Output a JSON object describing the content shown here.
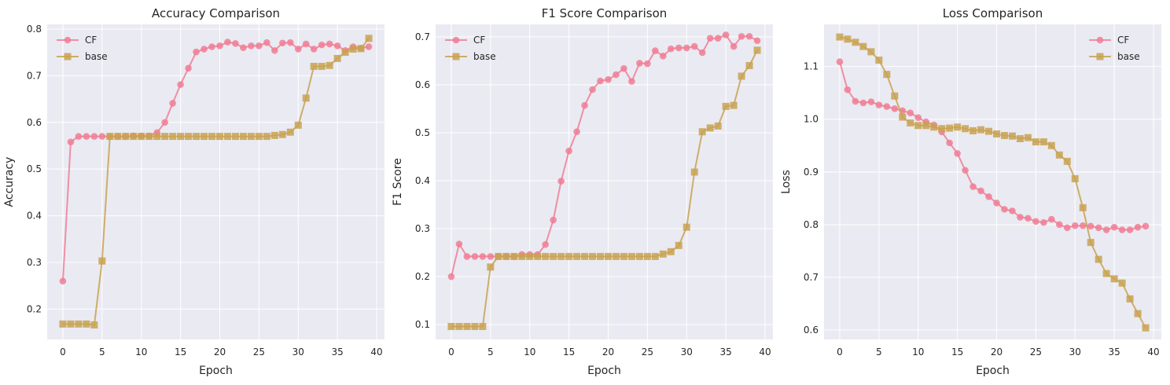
{
  "style": {
    "axes_bg": "#eaeaf2",
    "grid_color": "#ffffff",
    "cf_color": "#f07e95",
    "base_color": "#c8a251",
    "text_color": "#262626"
  },
  "chart_data": [
    {
      "type": "line",
      "title": "Accuracy Comparison",
      "xlabel": "Epoch",
      "ylabel": "Accuracy",
      "xlim": [
        -2,
        41
      ],
      "ylim": [
        0.135,
        0.81
      ],
      "xticks": [
        0,
        5,
        10,
        15,
        20,
        25,
        30,
        35,
        40
      ],
      "yticks": [
        0.2,
        0.3,
        0.4,
        0.5,
        0.6,
        0.7,
        0.8
      ],
      "ytick_labels": [
        "0.2",
        "0.3",
        "0.4",
        "0.5",
        "0.6",
        "0.7",
        "0.8"
      ],
      "grid": true,
      "legend_position": "upper-left",
      "series": [
        {
          "name": "CF",
          "marker": "circle",
          "color": "#f07e95",
          "x": [
            0,
            1,
            2,
            3,
            4,
            5,
            6,
            7,
            8,
            9,
            10,
            11,
            12,
            13,
            14,
            15,
            16,
            17,
            18,
            19,
            20,
            21,
            22,
            23,
            24,
            25,
            26,
            27,
            28,
            29,
            30,
            31,
            32,
            33,
            34,
            35,
            36,
            37,
            38,
            39
          ],
          "y": [
            0.26,
            0.558,
            0.57,
            0.57,
            0.57,
            0.57,
            0.57,
            0.57,
            0.57,
            0.571,
            0.571,
            0.571,
            0.578,
            0.6,
            0.641,
            0.681,
            0.716,
            0.751,
            0.757,
            0.762,
            0.764,
            0.772,
            0.769,
            0.76,
            0.764,
            0.764,
            0.771,
            0.754,
            0.77,
            0.771,
            0.757,
            0.768,
            0.757,
            0.766,
            0.768,
            0.764,
            0.754,
            0.762,
            0.759,
            0.762
          ]
        },
        {
          "name": "base",
          "marker": "square",
          "color": "#c8a251",
          "x": [
            0,
            1,
            2,
            3,
            4,
            5,
            6,
            7,
            8,
            9,
            10,
            11,
            12,
            13,
            14,
            15,
            16,
            17,
            18,
            19,
            20,
            21,
            22,
            23,
            24,
            25,
            26,
            27,
            28,
            29,
            30,
            31,
            32,
            33,
            34,
            35,
            36,
            37,
            38,
            39
          ],
          "y": [
            0.168,
            0.168,
            0.168,
            0.168,
            0.166,
            0.303,
            0.57,
            0.57,
            0.57,
            0.57,
            0.57,
            0.57,
            0.57,
            0.57,
            0.57,
            0.57,
            0.57,
            0.57,
            0.57,
            0.57,
            0.57,
            0.57,
            0.57,
            0.57,
            0.57,
            0.57,
            0.57,
            0.572,
            0.574,
            0.579,
            0.594,
            0.652,
            0.72,
            0.72,
            0.722,
            0.737,
            0.75,
            0.757,
            0.758,
            0.78
          ]
        }
      ]
    },
    {
      "type": "line",
      "title": "F1 Score Comparison",
      "xlabel": "Epoch",
      "ylabel": "F1 Score",
      "xlim": [
        -2,
        41
      ],
      "ylim": [
        0.069,
        0.726
      ],
      "xticks": [
        0,
        5,
        10,
        15,
        20,
        25,
        30,
        35,
        40
      ],
      "yticks": [
        0.1,
        0.2,
        0.3,
        0.4,
        0.5,
        0.6,
        0.7
      ],
      "ytick_labels": [
        "0.1",
        "0.2",
        "0.3",
        "0.4",
        "0.5",
        "0.6",
        "0.7"
      ],
      "grid": true,
      "legend_position": "upper-left",
      "series": [
        {
          "name": "CF",
          "marker": "circle",
          "color": "#f07e95",
          "x": [
            0,
            1,
            2,
            3,
            4,
            5,
            6,
            7,
            8,
            9,
            10,
            11,
            12,
            13,
            14,
            15,
            16,
            17,
            18,
            19,
            20,
            21,
            22,
            23,
            24,
            25,
            26,
            27,
            28,
            29,
            30,
            31,
            32,
            33,
            34,
            35,
            36,
            37,
            38,
            39
          ],
          "y": [
            0.2,
            0.268,
            0.242,
            0.242,
            0.242,
            0.242,
            0.242,
            0.242,
            0.242,
            0.246,
            0.246,
            0.246,
            0.267,
            0.318,
            0.399,
            0.462,
            0.502,
            0.557,
            0.59,
            0.608,
            0.611,
            0.621,
            0.634,
            0.607,
            0.645,
            0.644,
            0.671,
            0.66,
            0.675,
            0.677,
            0.677,
            0.68,
            0.667,
            0.697,
            0.697,
            0.704,
            0.68,
            0.701,
            0.701,
            0.692
          ]
        },
        {
          "name": "base",
          "marker": "square",
          "color": "#c8a251",
          "x": [
            0,
            1,
            2,
            3,
            4,
            5,
            6,
            7,
            8,
            9,
            10,
            11,
            12,
            13,
            14,
            15,
            16,
            17,
            18,
            19,
            20,
            21,
            22,
            23,
            24,
            25,
            26,
            27,
            28,
            29,
            30,
            31,
            32,
            33,
            34,
            35,
            36,
            37,
            38,
            39
          ],
          "y": [
            0.096,
            0.096,
            0.096,
            0.096,
            0.096,
            0.22,
            0.242,
            0.242,
            0.242,
            0.242,
            0.242,
            0.242,
            0.242,
            0.242,
            0.242,
            0.242,
            0.242,
            0.242,
            0.242,
            0.242,
            0.242,
            0.242,
            0.242,
            0.242,
            0.242,
            0.242,
            0.242,
            0.247,
            0.252,
            0.265,
            0.303,
            0.418,
            0.502,
            0.51,
            0.514,
            0.555,
            0.557,
            0.618,
            0.64,
            0.672
          ]
        }
      ]
    },
    {
      "type": "line",
      "title": "Loss Comparison",
      "xlabel": "Epoch",
      "ylabel": "Loss",
      "xlim": [
        -2,
        41
      ],
      "ylim": [
        0.582,
        1.18
      ],
      "xticks": [
        0,
        5,
        10,
        15,
        20,
        25,
        30,
        35,
        40
      ],
      "yticks": [
        0.6,
        0.7,
        0.8,
        0.9,
        1.0,
        1.1
      ],
      "ytick_labels": [
        "0.6",
        "0.7",
        "0.8",
        "0.9",
        "1.0",
        "1.1"
      ],
      "grid": true,
      "legend_position": "upper-right",
      "series": [
        {
          "name": "CF",
          "marker": "circle",
          "color": "#f07e95",
          "x": [
            0,
            1,
            2,
            3,
            4,
            5,
            6,
            7,
            8,
            9,
            10,
            11,
            12,
            13,
            14,
            15,
            16,
            17,
            18,
            19,
            20,
            21,
            22,
            23,
            24,
            25,
            26,
            27,
            28,
            29,
            30,
            31,
            32,
            33,
            34,
            35,
            36,
            37,
            38,
            39
          ],
          "y": [
            1.109,
            1.056,
            1.034,
            1.031,
            1.033,
            1.027,
            1.024,
            1.02,
            1.016,
            1.012,
            1.003,
            0.995,
            0.989,
            0.976,
            0.955,
            0.935,
            0.903,
            0.872,
            0.864,
            0.853,
            0.841,
            0.829,
            0.826,
            0.814,
            0.812,
            0.806,
            0.804,
            0.81,
            0.8,
            0.794,
            0.798,
            0.798,
            0.797,
            0.794,
            0.79,
            0.795,
            0.79,
            0.79,
            0.795,
            0.797
          ]
        },
        {
          "name": "base",
          "marker": "square",
          "color": "#c8a251",
          "x": [
            0,
            1,
            2,
            3,
            4,
            5,
            6,
            7,
            8,
            9,
            10,
            11,
            12,
            13,
            14,
            15,
            16,
            17,
            18,
            19,
            20,
            21,
            22,
            23,
            24,
            25,
            26,
            27,
            28,
            29,
            30,
            31,
            32,
            33,
            34,
            35,
            36,
            37,
            38,
            39
          ],
          "y": [
            1.156,
            1.152,
            1.146,
            1.138,
            1.128,
            1.112,
            1.085,
            1.044,
            1.004,
            0.993,
            0.988,
            0.988,
            0.985,
            0.982,
            0.983,
            0.985,
            0.982,
            0.978,
            0.98,
            0.977,
            0.972,
            0.969,
            0.968,
            0.963,
            0.965,
            0.957,
            0.957,
            0.95,
            0.932,
            0.92,
            0.887,
            0.832,
            0.766,
            0.734,
            0.707,
            0.697,
            0.689,
            0.659,
            0.631,
            0.604
          ]
        }
      ]
    }
  ]
}
